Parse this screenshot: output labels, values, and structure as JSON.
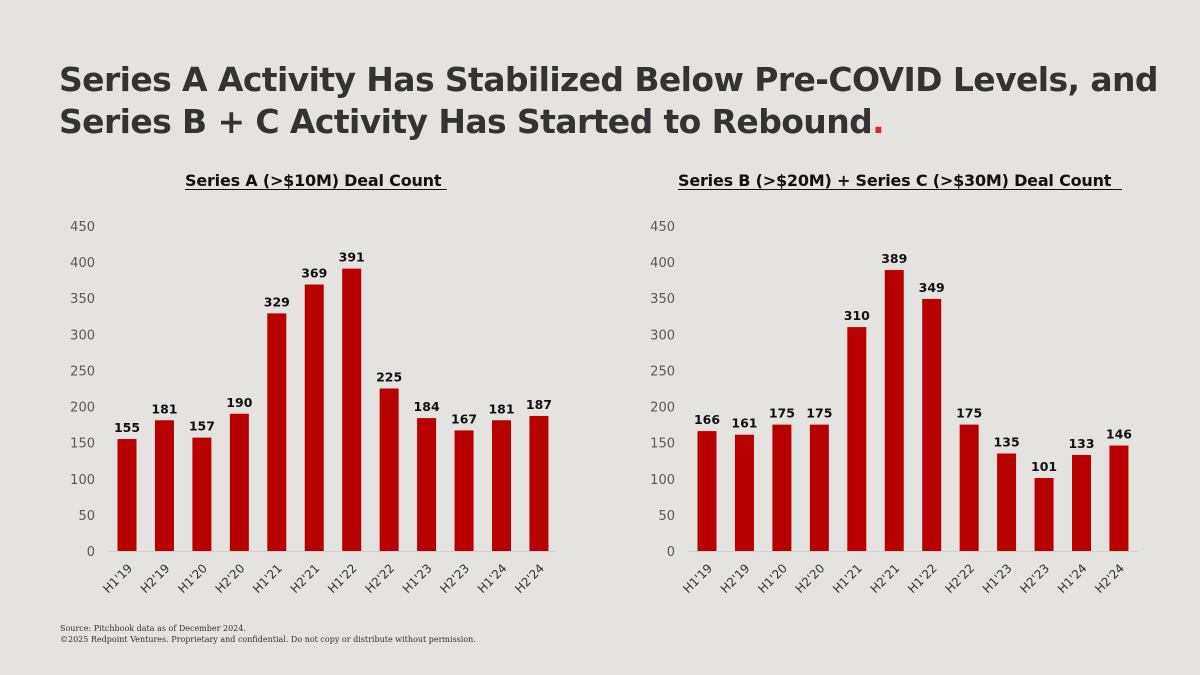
{
  "title": {
    "line1": "Series A Activity Has Stabilized Below Pre-COVID Levels, and",
    "line2": "Series B + C Activity Has Started to Rebound",
    "accent_dot": ".",
    "accent_color": "#e8202a"
  },
  "footer": {
    "source": "Source: Pitchbook data as of December 2024.",
    "copyright": "©2025 Redpoint Ventures. Proprietary and confidential. Do not copy or distribute without permission."
  },
  "bar_color": "#b80000",
  "chart_data": [
    {
      "type": "bar",
      "title": "Series A (>$10M) Deal Count ",
      "xlabel": "",
      "ylabel": "",
      "ylim": [
        0,
        450
      ],
      "yticks": [
        0,
        50,
        100,
        150,
        200,
        250,
        300,
        350,
        400,
        450
      ],
      "grid": false,
      "legend": "none",
      "categories": [
        "H1'19",
        "H2'19",
        "H1'20",
        "H2'20",
        "H1'21",
        "H2'21",
        "H1'22",
        "H2'22",
        "H1'23",
        "H2'23",
        "H1'24",
        "H2'24"
      ],
      "values": [
        155,
        181,
        157,
        190,
        329,
        369,
        391,
        225,
        184,
        167,
        181,
        187
      ],
      "data_labels": true
    },
    {
      "type": "bar",
      "title": "Series B (>$20M) + Series C (>$30M) Deal Count  ",
      "xlabel": "",
      "ylabel": "",
      "ylim": [
        0,
        450
      ],
      "yticks": [
        0,
        50,
        100,
        150,
        200,
        250,
        300,
        350,
        400,
        450
      ],
      "grid": false,
      "legend": "none",
      "categories": [
        "H1'19",
        "H2'19",
        "H1'20",
        "H2'20",
        "H1'21",
        "H2'21",
        "H1'22",
        "H2'22",
        "H1'23",
        "H2'23",
        "H1'24",
        "H2'24"
      ],
      "values": [
        166,
        161,
        175,
        175,
        310,
        389,
        349,
        175,
        135,
        101,
        133,
        146
      ],
      "data_labels": true
    }
  ]
}
